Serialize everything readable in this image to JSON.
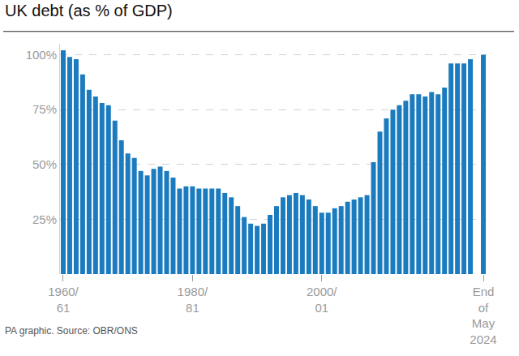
{
  "chart_data": {
    "type": "bar",
    "title": "UK debt (as % of GDP)",
    "annotations": [
      "PA graphic. Source: OBR/ONS"
    ],
    "categories": [
      "1960/61",
      null,
      null,
      null,
      null,
      null,
      null,
      null,
      null,
      null,
      null,
      null,
      null,
      null,
      null,
      null,
      null,
      null,
      null,
      null,
      "1980/81",
      null,
      null,
      null,
      null,
      null,
      null,
      null,
      null,
      null,
      null,
      null,
      null,
      null,
      null,
      null,
      null,
      null,
      null,
      null,
      "2000/01",
      null,
      null,
      null,
      null,
      null,
      null,
      null,
      null,
      null,
      null,
      null,
      null,
      null,
      null,
      null,
      null,
      null,
      null,
      null,
      null,
      null,
      null,
      null,
      null,
      "End of May 2024"
    ],
    "values": [
      102,
      99,
      98,
      91,
      84,
      81,
      78,
      77,
      70,
      61,
      55,
      53,
      47,
      45,
      48,
      49,
      47,
      44,
      39,
      40,
      40,
      39,
      39,
      39,
      39,
      37,
      35,
      31,
      26,
      23,
      22,
      23,
      27,
      31,
      35,
      36,
      37,
      36,
      34,
      31,
      28,
      28,
      30,
      31,
      33,
      34,
      35,
      36,
      51,
      65,
      71,
      75,
      77,
      79,
      82,
      82,
      81,
      83,
      82,
      85,
      96,
      96,
      96,
      98,
      null,
      100
    ],
    "color": "#1b7bbf",
    "ylim": [
      0,
      105
    ],
    "yticks": [
      {
        "value": 25,
        "label": "25%"
      },
      {
        "value": 50,
        "label": "50%"
      },
      {
        "value": 75,
        "label": "75%"
      },
      {
        "value": 100,
        "label": "100%"
      }
    ],
    "grid": true
  }
}
